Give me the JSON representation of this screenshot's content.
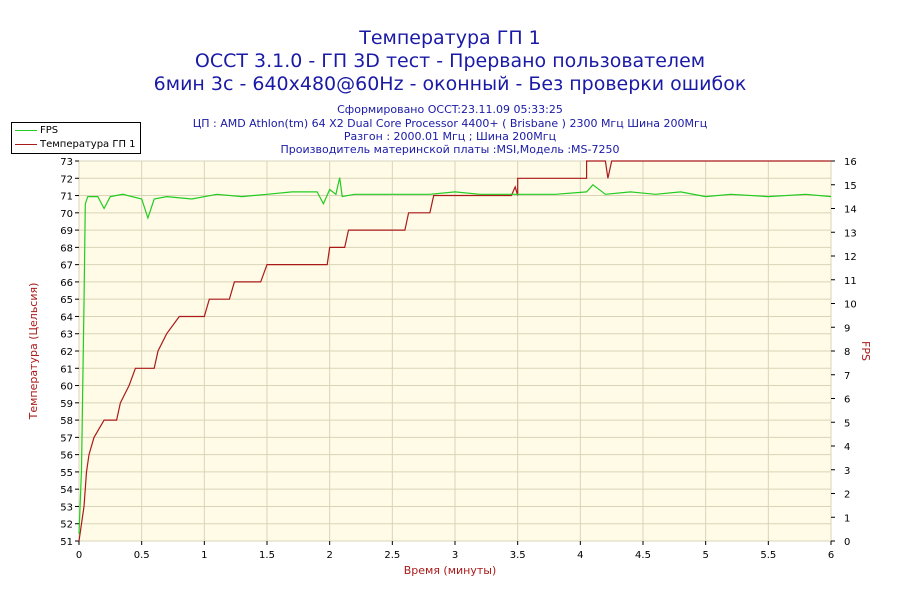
{
  "title_lines": [
    "Температура ГП 1",
    "OCCT 3.1.0 - ГП 3D тест - Прервано пользователем",
    "6мин 3с - 640x480@60Hz - оконный - Без проверки ошибок"
  ],
  "info_lines": [
    "Сформировано OCCT:23.11.09 05:33:25",
    "ЦП : AMD Athlon(tm) 64 X2 Dual Core Processor 4400+ ( Brisbane ) 2300 Мгц Шина 200Мгц",
    "Разгон : 2000.01 Мгц ; Шина 200Мгц",
    "Производитель материнской платы :MSI,Модель :MS-7250"
  ],
  "legend": [
    {
      "label": "FPS",
      "color": "#22cc22"
    },
    {
      "label": "Температура ГП 1",
      "color": "#aa1a1a"
    }
  ],
  "chart_data": {
    "type": "line",
    "xlabel": "Время (минуты)",
    "ylabel_left": "Температура (Цельсия)",
    "ylabel_right": "FPS",
    "xlim": [
      0,
      6
    ],
    "ylim_left": [
      51,
      73
    ],
    "ylim_right": [
      0,
      16
    ],
    "x_ticks": [
      "0",
      "0.5",
      "1",
      "1.5",
      "2",
      "2.5",
      "3",
      "3.5",
      "4",
      "4.5",
      "5",
      "5.5",
      "6"
    ],
    "y_left_ticks": [
      "51",
      "52",
      "53",
      "54",
      "55",
      "56",
      "57",
      "58",
      "59",
      "60",
      "61",
      "62",
      "63",
      "64",
      "65",
      "66",
      "67",
      "68",
      "69",
      "70",
      "71",
      "72",
      "73"
    ],
    "y_right_ticks": [
      "0",
      "1",
      "2",
      "3",
      "4",
      "5",
      "6",
      "7",
      "8",
      "9",
      "10",
      "11",
      "12",
      "13",
      "14",
      "15",
      "16"
    ],
    "grid": true,
    "background": "#fffbe6",
    "series": [
      {
        "name": "Температура ГП 1",
        "axis": "left",
        "color": "#aa1a1a",
        "points": [
          [
            0,
            51
          ],
          [
            0.02,
            52
          ],
          [
            0.04,
            53
          ],
          [
            0.06,
            55
          ],
          [
            0.08,
            56
          ],
          [
            0.12,
            57
          ],
          [
            0.2,
            58
          ],
          [
            0.3,
            58
          ],
          [
            0.33,
            59
          ],
          [
            0.4,
            60
          ],
          [
            0.45,
            61
          ],
          [
            0.6,
            61
          ],
          [
            0.63,
            62
          ],
          [
            0.7,
            63
          ],
          [
            0.8,
            64
          ],
          [
            1.0,
            64
          ],
          [
            1.04,
            65
          ],
          [
            1.2,
            65
          ],
          [
            1.24,
            66
          ],
          [
            1.45,
            66
          ],
          [
            1.5,
            67
          ],
          [
            1.98,
            67
          ],
          [
            2.0,
            68
          ],
          [
            2.12,
            68
          ],
          [
            2.15,
            69
          ],
          [
            2.6,
            69
          ],
          [
            2.63,
            70
          ],
          [
            2.8,
            70
          ],
          [
            2.83,
            71
          ],
          [
            3.45,
            71
          ],
          [
            3.48,
            71.5
          ],
          [
            3.5,
            71
          ],
          [
            3.5,
            72
          ],
          [
            3.55,
            72
          ],
          [
            3.6,
            72
          ],
          [
            4.05,
            72
          ],
          [
            4.05,
            73
          ],
          [
            4.2,
            73
          ],
          [
            4.22,
            72
          ],
          [
            4.25,
            73
          ],
          [
            6.0,
            73
          ]
        ]
      },
      {
        "name": "FPS",
        "axis": "right",
        "color": "#22cc22",
        "points": [
          [
            0,
            0.3
          ],
          [
            0.02,
            3
          ],
          [
            0.04,
            10
          ],
          [
            0.05,
            14.2
          ],
          [
            0.07,
            14.5
          ],
          [
            0.15,
            14.5
          ],
          [
            0.2,
            14.0
          ],
          [
            0.25,
            14.5
          ],
          [
            0.35,
            14.6
          ],
          [
            0.5,
            14.4
          ],
          [
            0.55,
            13.6
          ],
          [
            0.6,
            14.4
          ],
          [
            0.7,
            14.5
          ],
          [
            0.9,
            14.4
          ],
          [
            1.1,
            14.6
          ],
          [
            1.3,
            14.5
          ],
          [
            1.5,
            14.6
          ],
          [
            1.7,
            14.7
          ],
          [
            1.9,
            14.7
          ],
          [
            1.95,
            14.2
          ],
          [
            2.0,
            14.8
          ],
          [
            2.05,
            14.6
          ],
          [
            2.08,
            15.3
          ],
          [
            2.1,
            14.5
          ],
          [
            2.2,
            14.6
          ],
          [
            2.5,
            14.6
          ],
          [
            2.8,
            14.6
          ],
          [
            3.0,
            14.7
          ],
          [
            3.2,
            14.6
          ],
          [
            3.4,
            14.6
          ],
          [
            3.6,
            14.6
          ],
          [
            3.8,
            14.6
          ],
          [
            4.05,
            14.7
          ],
          [
            4.1,
            15.0
          ],
          [
            4.2,
            14.6
          ],
          [
            4.4,
            14.7
          ],
          [
            4.6,
            14.6
          ],
          [
            4.8,
            14.7
          ],
          [
            5.0,
            14.5
          ],
          [
            5.2,
            14.6
          ],
          [
            5.5,
            14.5
          ],
          [
            5.8,
            14.6
          ],
          [
            6.0,
            14.5
          ]
        ]
      }
    ]
  }
}
